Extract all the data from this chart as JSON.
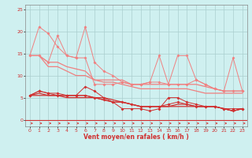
{
  "x": [
    0,
    1,
    2,
    3,
    4,
    5,
    6,
    7,
    8,
    9,
    10,
    11,
    12,
    13,
    14,
    15,
    16,
    17,
    18,
    19,
    20,
    21,
    22,
    23
  ],
  "line1": [
    14.5,
    21,
    19.5,
    16.5,
    14.5,
    14,
    21,
    13,
    11,
    10,
    8.5,
    8,
    8,
    8.5,
    14.5,
    8,
    14.5,
    14.5,
    9,
    8,
    7,
    6.5,
    14,
    6.5
  ],
  "line2": [
    14.5,
    14.5,
    13,
    19,
    14.5,
    14,
    14,
    8,
    8,
    8,
    8.5,
    8,
    8,
    8.5,
    8.5,
    8,
    8,
    8,
    9,
    8,
    7,
    6.5,
    6.5,
    6.5
  ],
  "line3": [
    14.5,
    14.5,
    13,
    13,
    12,
    11.5,
    11,
    9,
    9,
    9,
    9,
    8,
    8,
    8,
    8,
    8,
    8,
    8,
    8,
    7.5,
    7,
    6.5,
    6.5,
    6.5
  ],
  "line4": [
    14.5,
    14.5,
    12,
    12,
    11,
    10,
    10,
    9,
    8.5,
    8.5,
    8,
    7.5,
    7,
    7,
    7,
    7,
    7,
    7,
    6.5,
    6,
    6,
    6,
    6,
    6
  ],
  "line5": [
    5.5,
    6.5,
    6,
    6,
    5.5,
    5.5,
    7.5,
    6.5,
    5,
    4,
    2.5,
    2.5,
    2.5,
    2,
    2.5,
    5,
    5,
    4,
    3.5,
    3,
    3,
    2.5,
    2.5,
    2.5
  ],
  "line6": [
    5.5,
    6.5,
    6,
    5.5,
    5.5,
    5.5,
    5.5,
    5,
    4.5,
    4,
    4,
    3.5,
    3,
    3,
    3,
    3.5,
    4,
    3.5,
    3,
    3,
    3,
    2.5,
    2,
    2.5
  ],
  "line7": [
    5.5,
    6,
    5.5,
    5.5,
    5.5,
    5.5,
    5.5,
    5,
    5,
    4.5,
    4,
    3.5,
    3,
    3,
    3,
    3,
    3.5,
    3.5,
    3,
    3,
    3,
    2.5,
    2,
    2.5
  ],
  "line8": [
    5.5,
    5.5,
    5.5,
    5.5,
    5,
    5,
    5,
    5,
    4.5,
    4,
    4,
    3.5,
    3,
    3,
    3,
    3,
    3,
    3,
    3,
    3,
    3,
    2.5,
    2,
    2.5
  ],
  "color_light": "#f08080",
  "color_dark": "#d03030",
  "color_mid": "#e05050",
  "background": "#cff0f0",
  "grid_color": "#aacece",
  "xlabel": "Vent moyen/en rafales ( km/h )",
  "xlim": [
    -0.5,
    23.5
  ],
  "ylim": [
    -1.5,
    26
  ],
  "yticks": [
    0,
    5,
    10,
    15,
    20,
    25
  ],
  "xticks": [
    0,
    1,
    2,
    3,
    4,
    5,
    6,
    7,
    8,
    9,
    10,
    11,
    12,
    13,
    14,
    15,
    16,
    17,
    18,
    19,
    20,
    21,
    22,
    23
  ]
}
